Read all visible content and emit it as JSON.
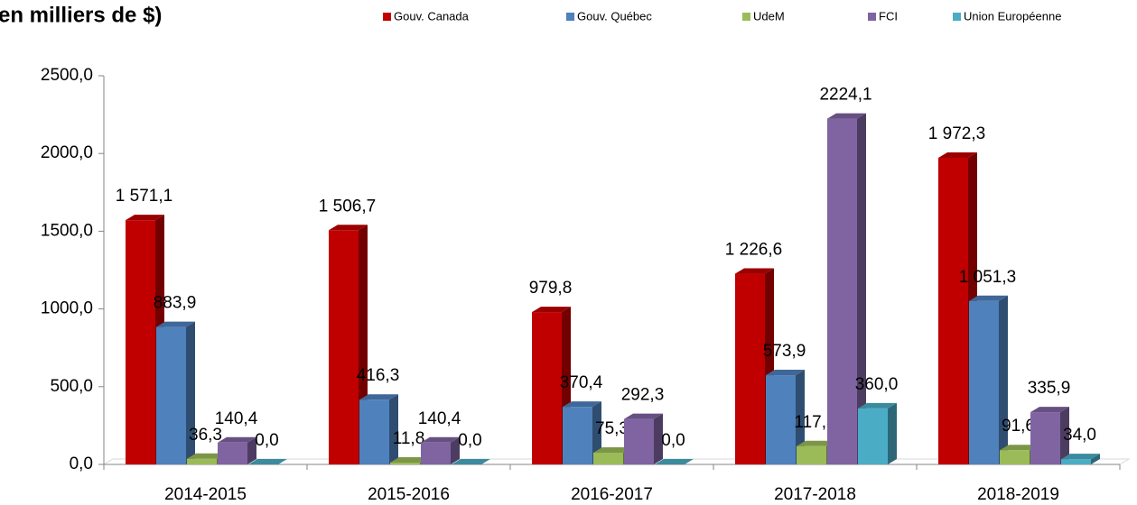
{
  "chart_data": {
    "type": "bar3d",
    "title": "en milliers de $)",
    "categories": [
      "2014-2015",
      "2015-2016",
      "2016-2017",
      "2017-2018",
      "2018-2019"
    ],
    "series": [
      {
        "name": "Gouv. Canada",
        "color": "#c00000",
        "values": [
          1571.1,
          1506.7,
          979.8,
          1226.6,
          1972.3
        ],
        "value_labels": [
          "1 571,1",
          "1 506,7",
          "979,8",
          "1 226,6",
          "1 972,3"
        ]
      },
      {
        "name": "Gouv. Québec",
        "color": "#4f81bd",
        "values": [
          883.9,
          416.3,
          370.4,
          573.9,
          1051.3
        ],
        "value_labels": [
          "883,9",
          "416,3",
          "370,4",
          "573,9",
          "1 051,3"
        ]
      },
      {
        "name": "UdeM",
        "color": "#9bbb59",
        "values": [
          36.3,
          11.8,
          75.3,
          117.3,
          91.6
        ],
        "value_labels": [
          "36,3",
          "11,8",
          "75,3",
          "117,3",
          "91,6"
        ]
      },
      {
        "name": "FCI",
        "color": "#8064a2",
        "values": [
          140.4,
          140.4,
          292.3,
          2224.1,
          335.9
        ],
        "value_labels": [
          "140,4",
          "140,4",
          "292,3",
          "2224,1",
          "335,9"
        ]
      },
      {
        "name": "Union Européenne",
        "color": "#4bacc6",
        "values": [
          0.0,
          0.0,
          0.0,
          360.0,
          34.0
        ],
        "value_labels": [
          "0,0",
          "0,0",
          "0,0",
          "360,0",
          "34,0"
        ]
      }
    ],
    "ylim": [
      0,
      2500
    ],
    "yticks": [
      {
        "value": 0,
        "label": "0,0"
      },
      {
        "value": 500,
        "label": "500,0"
      },
      {
        "value": 1000,
        "label": "1000,0"
      },
      {
        "value": 1500,
        "label": "1500,0"
      },
      {
        "value": 2000,
        "label": "2000,0"
      },
      {
        "value": 2500,
        "label": "2500,0"
      }
    ],
    "legend": "top-right"
  }
}
